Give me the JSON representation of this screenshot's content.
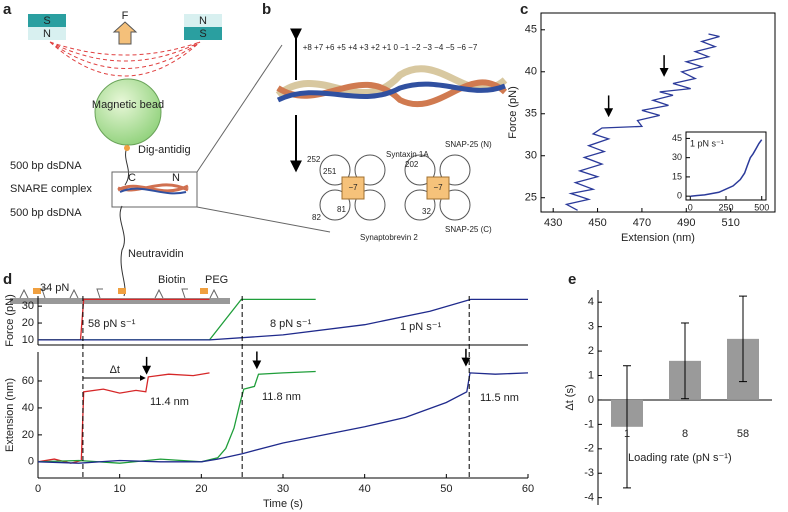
{
  "panel_a": {
    "label": "a",
    "magnet_left_top": "S",
    "magnet_left_bottom": "N",
    "force": "F",
    "magnet_right_top": "N",
    "magnet_right_bottom": "S",
    "bead": "Magnetic bead",
    "dig": "Dig-antidig",
    "dna_top": "500 bp dsDNA",
    "snare": "SNARE complex",
    "c_term": "C",
    "n_term": "N",
    "dna_bottom": "500 bp dsDNA",
    "neutravidin": "Neutravidin",
    "biotin": "Biotin",
    "peg": "PEG"
  },
  "panel_b": {
    "label": "b",
    "layers": "+8 +7 +6 +5 +4 +3 +2 +1 0 −1 −2 −3 −4 −5 −6 −7",
    "syntaxin": "Syntaxin 1A",
    "snap_n": "SNAP-25 (N)",
    "snap_c": "SNAP-25 (C)",
    "synaptobrevin": "Synaptobrevin 2",
    "r252": "252",
    "r251": "251",
    "r81": "81",
    "r82": "82",
    "r202": "202",
    "r32": "32",
    "layer_left": "−7",
    "layer_right": "−7"
  },
  "panel_c_label": "c",
  "panel_d_label": "d",
  "panel_e_label": "e",
  "chart_data": [
    {
      "type": "line",
      "xlabel": "Extension (nm)",
      "ylabel": "Force (pN)",
      "xlim": [
        424.5,
        530
      ],
      "ylim": [
        23.3,
        47
      ],
      "xticks": [
        430,
        450,
        470,
        490,
        510
      ],
      "yticks": [
        25,
        30,
        35,
        40,
        45
      ],
      "series": [
        {
          "color": "#2b3a9a",
          "x": [
            441,
            436,
            446,
            438,
            448,
            440,
            450,
            442,
            452,
            444,
            453,
            446,
            455,
            448,
            452,
            470,
            468,
            478,
            470,
            482,
            475,
            484,
            478,
            492,
            484,
            494,
            488,
            497,
            490,
            500,
            494,
            503,
            497,
            505,
            500
          ],
          "values": [
            23.5,
            24.2,
            24.8,
            25.5,
            26,
            26.8,
            27.5,
            28.2,
            29,
            29.8,
            30.5,
            31.2,
            32,
            32.6,
            33.3,
            33.5,
            34.2,
            34.8,
            35.4,
            36,
            36.6,
            37.2,
            37.6,
            38,
            38.6,
            39.2,
            40,
            40.6,
            41.2,
            41.8,
            42.4,
            43,
            43.6,
            44.2,
            44.5
          ]
        }
      ],
      "arrows": [
        {
          "x": 455,
          "y": 34.8
        },
        {
          "x": 480,
          "y": 39.6
        }
      ]
    },
    {
      "type": "line",
      "annotation": "1 pN s⁻¹",
      "xlim": [
        -30,
        530
      ],
      "ylim": [
        -3,
        50
      ],
      "xticks": [
        0,
        250,
        500
      ],
      "yticks": [
        0,
        15,
        30,
        45
      ],
      "series": [
        {
          "color": "#2b3a9a",
          "x": [
            0,
            50,
            100,
            200,
            300,
            350,
            380,
            400,
            420,
            440,
            460,
            480,
            500
          ],
          "values": [
            0,
            0.5,
            1,
            3,
            8,
            13,
            18,
            24,
            30,
            33,
            37,
            41,
            44
          ]
        }
      ]
    },
    {
      "type": "line",
      "ylabel": "Force (pN)",
      "xlim": [
        0,
        60
      ],
      "ylim": [
        7,
        36
      ],
      "yticks": [
        10,
        20,
        30
      ],
      "annotations": [
        "34 pN",
        "58 pN s⁻¹",
        "8 pN s⁻¹",
        "1 pN s⁻¹"
      ],
      "series": [
        {
          "color": "#d62728",
          "x": [
            0,
            5.2,
            5.6,
            21
          ],
          "values": [
            10,
            10,
            34,
            34
          ]
        },
        {
          "color": "#1f9e3a",
          "x": [
            0,
            21,
            24.9,
            34
          ],
          "values": [
            10,
            10,
            34,
            34
          ]
        },
        {
          "color": "#1f2a8c",
          "x": [
            0,
            21,
            30,
            40,
            48,
            53,
            60
          ],
          "values": [
            10,
            10,
            13,
            19,
            27,
            34,
            34
          ]
        }
      ]
    },
    {
      "type": "line",
      "xlabel": "Time (s)",
      "ylabel": "Extension (nm)",
      "xlim": [
        0,
        60
      ],
      "ylim": [
        -12,
        81.5
      ],
      "xticks": [
        0,
        10,
        20,
        30,
        40,
        50,
        60
      ],
      "yticks": [
        0,
        20,
        40,
        60
      ],
      "annotations": [
        "Δt",
        "11.4 nm",
        "11.8 nm",
        "11.5 nm"
      ],
      "vlines": [
        5.5,
        25,
        52.8
      ],
      "arrows": [
        {
          "x": 13.3,
          "y": 66
        },
        {
          "x": 26.8,
          "y": 70
        },
        {
          "x": 52.4,
          "y": 72
        }
      ],
      "series": [
        {
          "color": "#d62728",
          "x": [
            0,
            2,
            4,
            5.3,
            5.6,
            8,
            10,
            12,
            13.2,
            13.5,
            16,
            19,
            21
          ],
          "values": [
            0,
            2,
            -1,
            1,
            52,
            54,
            51,
            53,
            52,
            63,
            65,
            64,
            66
          ]
        },
        {
          "color": "#1f9e3a",
          "x": [
            0,
            5,
            10,
            15,
            20,
            22,
            23,
            24,
            24.8,
            25.2,
            26.5,
            27,
            30,
            34
          ],
          "values": [
            0,
            1,
            -1,
            2,
            0,
            3,
            10,
            25,
            45,
            54,
            56,
            65,
            66,
            67
          ]
        },
        {
          "color": "#1f2a8c",
          "x": [
            0,
            5,
            10,
            15,
            20,
            22,
            25,
            30,
            35,
            40,
            45,
            50,
            52.5,
            52.9,
            56,
            60
          ],
          "values": [
            0,
            -1,
            1,
            0,
            0,
            2,
            6,
            14,
            20,
            26,
            33,
            44,
            52,
            66,
            65,
            66
          ]
        }
      ]
    },
    {
      "type": "bar",
      "xlabel": "Loading rate (pN s⁻¹)",
      "ylabel": "Δt (s)",
      "categories": [
        "1",
        "8",
        "58"
      ],
      "values": [
        -1.1,
        1.6,
        2.5
      ],
      "errors": [
        2.5,
        1.55,
        1.75
      ],
      "color": "#9a9a9a",
      "ylim": [
        -4.3,
        4.5
      ],
      "yticks": [
        -4,
        -3,
        -2,
        -1,
        0,
        1,
        2,
        3,
        4
      ]
    }
  ]
}
